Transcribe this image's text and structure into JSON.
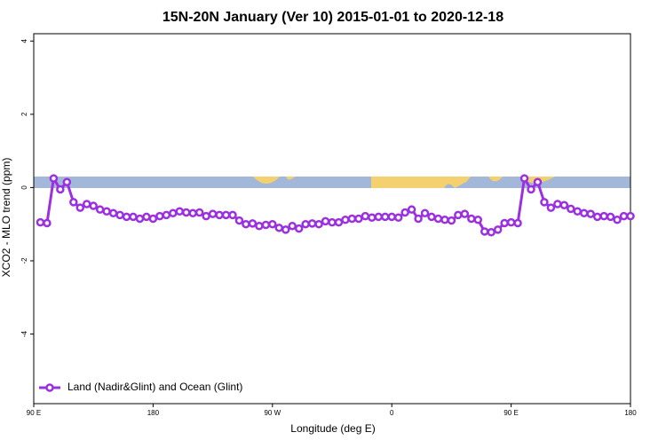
{
  "chart_data": {
    "type": "line",
    "title": "15N-20N January (Ver 10)   2015-01-01 to 2020-12-18",
    "x_label": "Longitude (deg E)",
    "y_label": "XCO2 - MLO trend (ppm)",
    "series": [
      {
        "name": "Land (Nadir&Glint) and Ocean (Glint)",
        "color": "#9b30e0",
        "x": [
          95,
          100,
          105,
          110,
          115,
          120,
          125,
          130,
          135,
          140,
          145,
          150,
          155,
          160,
          165,
          170,
          175,
          180,
          185,
          190,
          195,
          200,
          205,
          210,
          215,
          220,
          225,
          230,
          235,
          240,
          245,
          250,
          255,
          260,
          265,
          270,
          275,
          280,
          285,
          290,
          295,
          300,
          305,
          310,
          315,
          320,
          325,
          330,
          335,
          340,
          345,
          350,
          355,
          360,
          365,
          370,
          375,
          380,
          385,
          390,
          395,
          400,
          405,
          410,
          415,
          420,
          425,
          430,
          435,
          440,
          445,
          450,
          455,
          460,
          465,
          470,
          475,
          480,
          485,
          490,
          495,
          500,
          505,
          510,
          515,
          520,
          525,
          530,
          535,
          540
        ],
        "values": [
          -0.95,
          -0.97,
          0.25,
          -0.05,
          0.15,
          -0.4,
          -0.55,
          -0.45,
          -0.5,
          -0.6,
          -0.65,
          -0.7,
          -0.75,
          -0.8,
          -0.8,
          -0.85,
          -0.8,
          -0.85,
          -0.78,
          -0.75,
          -0.7,
          -0.65,
          -0.68,
          -0.7,
          -0.68,
          -0.78,
          -0.72,
          -0.75,
          -0.75,
          -0.75,
          -0.9,
          -1.0,
          -0.98,
          -1.05,
          -1.02,
          -1.0,
          -1.1,
          -1.15,
          -1.05,
          -1.12,
          -1.0,
          -0.98,
          -1.0,
          -0.92,
          -0.95,
          -0.95,
          -0.88,
          -0.85,
          -0.85,
          -0.78,
          -0.82,
          -0.8,
          -0.8,
          -0.8,
          -0.82,
          -0.68,
          -0.6,
          -0.85,
          -0.7,
          -0.8,
          -0.85,
          -0.88,
          -0.9,
          -0.75,
          -0.72,
          -0.85,
          -0.88,
          -1.2,
          -1.22,
          -1.15,
          -0.97,
          -0.95,
          -0.97,
          0.25,
          -0.05,
          0.15,
          -0.4,
          -0.55,
          -0.45,
          -0.48,
          -0.58,
          -0.65,
          -0.7,
          -0.72,
          -0.8,
          -0.78,
          -0.8,
          -0.88,
          -0.78,
          -0.78
        ]
      }
    ],
    "xlim": [
      90,
      540
    ],
    "xticks": [
      {
        "value": 90,
        "label": "90 E"
      },
      180,
      {
        "value": 270,
        "label": "90 W"
      },
      {
        "value": 360,
        "label": "0"
      },
      {
        "value": 450,
        "label": "90 E"
      },
      {
        "value": 540,
        "label": "180"
      }
    ],
    "ylim": [
      -5.9,
      4.2
    ],
    "yticks": [
      -4,
      -2,
      0,
      2,
      4
    ],
    "legend": "bottom-left"
  }
}
